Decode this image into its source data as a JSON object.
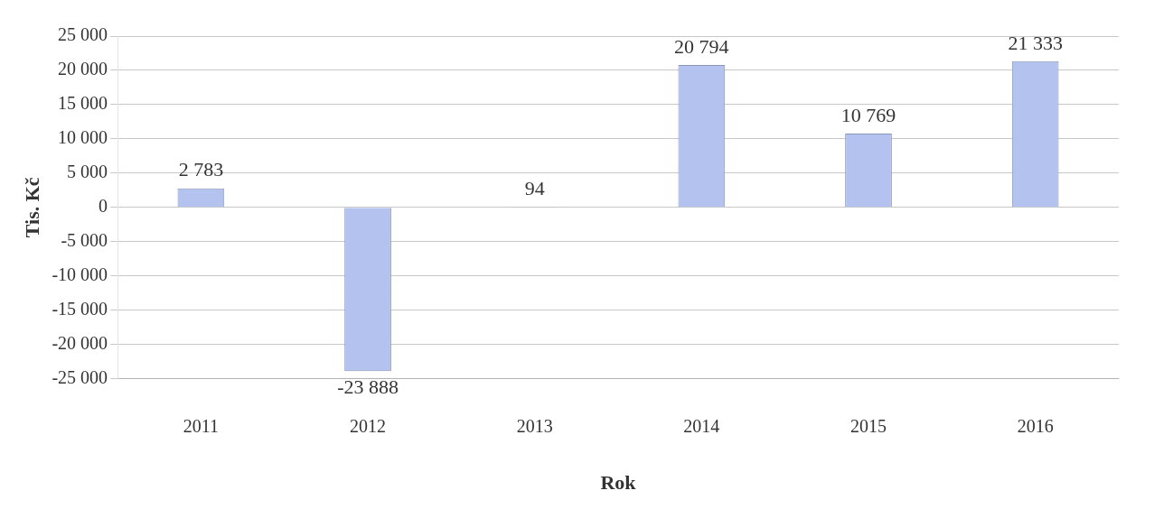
{
  "chart_data": {
    "type": "bar",
    "categories": [
      "2011",
      "2012",
      "2013",
      "2014",
      "2015",
      "2016"
    ],
    "values": [
      2783,
      -23888,
      94,
      20794,
      10769,
      21333
    ],
    "value_labels": [
      "2 783",
      "-23 888",
      "94",
      "20 794",
      "10 769",
      "21 333"
    ],
    "color": "#b4c2f0",
    "xlabel": "Rok",
    "ylabel": "Tis. Kč",
    "ylim": [
      -25000,
      25000
    ],
    "yticks": [
      {
        "value": -25000,
        "label": "-25 000"
      },
      {
        "value": -20000,
        "label": "-20 000"
      },
      {
        "value": -15000,
        "label": "-15 000"
      },
      {
        "value": -10000,
        "label": "-10 000"
      },
      {
        "value": -5000,
        "label": "-5 000"
      },
      0,
      {
        "value": 5000,
        "label": "5 000"
      },
      {
        "value": 10000,
        "label": "10 000"
      },
      {
        "value": 15000,
        "label": "15 000"
      },
      {
        "value": 20000,
        "label": "20 000"
      },
      {
        "value": 25000,
        "label": "25 000"
      }
    ],
    "grid": "y",
    "legend": false
  }
}
